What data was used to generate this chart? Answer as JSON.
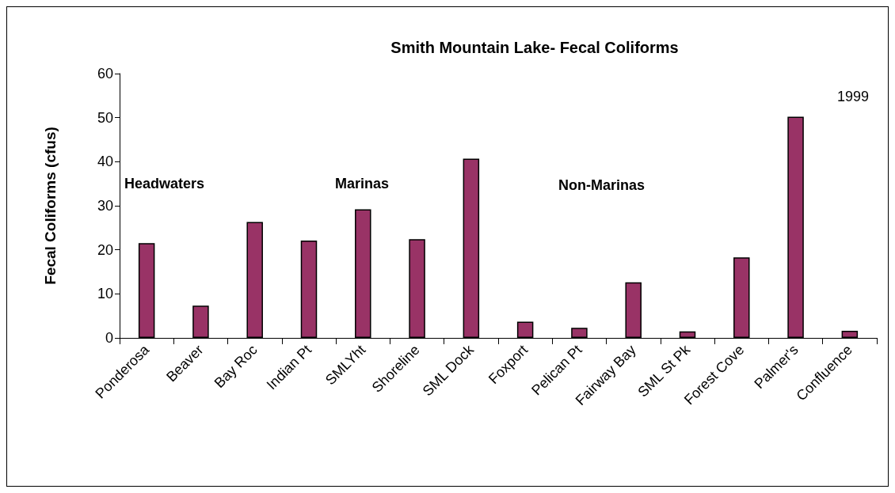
{
  "chart_data": {
    "type": "bar",
    "title": "Smith Mountain Lake- Fecal Coliforms",
    "ylabel": "Fecal Coliforms (cfus)",
    "categories": [
      "Ponderosa",
      "Beaver",
      "Bay Roc",
      "Indian Pt",
      "SMLYht",
      "Shoreline",
      "SML Dock",
      "Foxport",
      "Pelican Pt",
      "Fairway Bay",
      "SML St Pk",
      "Forest Cove",
      "Palmer's",
      "Confluence"
    ],
    "values": [
      21.5,
      7.3,
      26.3,
      22.1,
      29.2,
      22.4,
      40.7,
      3.7,
      2.3,
      12.6,
      1.5,
      18.3,
      50.2,
      1.6
    ],
    "color": "#993366",
    "ylim": [
      0,
      60
    ],
    "yticks": [
      0,
      10,
      20,
      30,
      40,
      50,
      60
    ],
    "grid": false,
    "annotations": [
      "Headwaters",
      "Marinas",
      "Non-Marinas",
      "1999"
    ]
  }
}
